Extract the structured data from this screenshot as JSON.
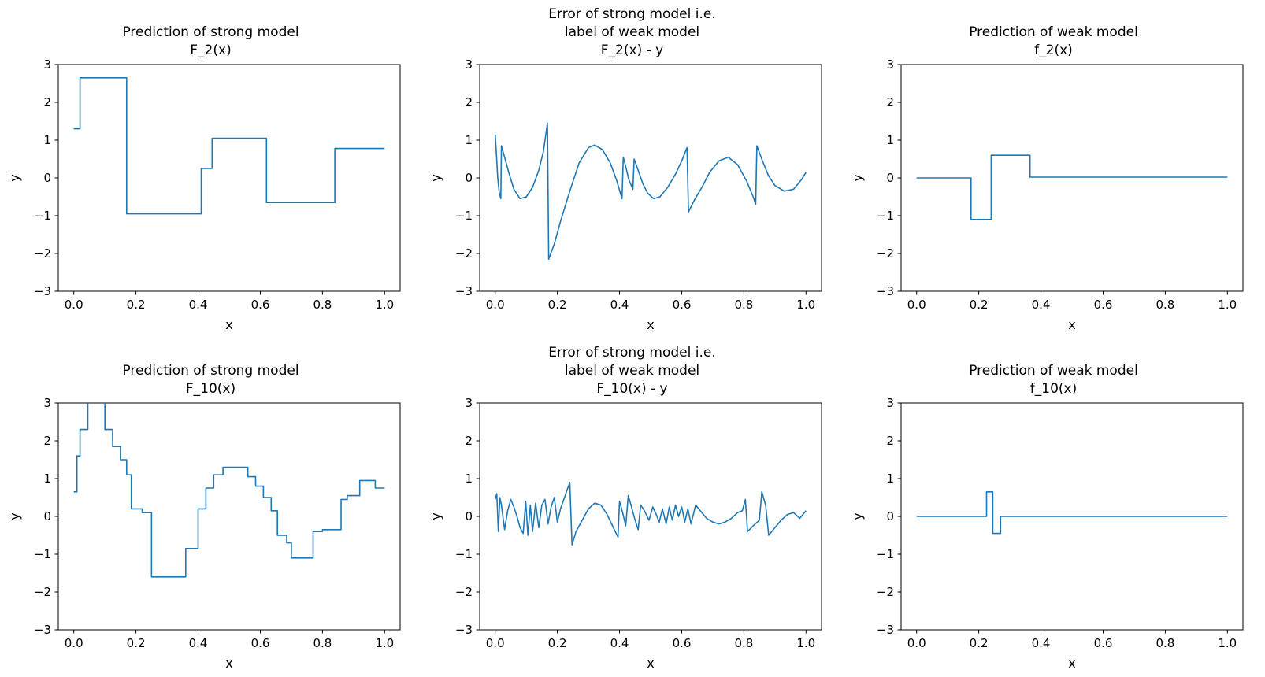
{
  "figure": {
    "background": "#ffffff",
    "line_color": "#1f77b4",
    "text_color": "#000000"
  },
  "chart_data": [
    {
      "id": "prediction-strong-model-F2",
      "type": "line",
      "line_style": "step",
      "title": "Prediction of strong model\nF_2(x)",
      "xlabel": "x",
      "ylabel": "y",
      "xlim": [
        -0.05,
        1.05
      ],
      "ylim": [
        -3,
        3
      ],
      "grid": false,
      "legend": "none",
      "xticks": {
        "values": [
          0.0,
          0.2,
          0.4,
          0.6,
          0.8,
          1.0
        ],
        "labels": [
          "0.0",
          "0.2",
          "0.4",
          "0.6",
          "0.8",
          "1.0"
        ]
      },
      "yticks": {
        "values": [
          -3,
          -2,
          -1,
          0,
          1,
          2,
          3
        ],
        "labels": [
          "−3",
          "−2",
          "−1",
          "0",
          "1",
          "2",
          "3"
        ]
      },
      "segments": [
        [
          0.0,
          0.02,
          1.3
        ],
        [
          0.02,
          0.17,
          2.65
        ],
        [
          0.17,
          0.41,
          -0.95
        ],
        [
          0.41,
          0.445,
          0.25
        ],
        [
          0.445,
          0.62,
          1.05
        ],
        [
          0.62,
          0.84,
          -0.65
        ],
        [
          0.84,
          1.0,
          0.78
        ]
      ]
    },
    {
      "id": "error-strong-model-F2",
      "type": "line",
      "line_style": "curve",
      "title": "Error of strong model i.e.\nlabel of weak model\nF_2(x) - y",
      "xlabel": "x",
      "ylabel": "y",
      "xlim": [
        -0.05,
        1.05
      ],
      "ylim": [
        -3,
        3
      ],
      "grid": false,
      "legend": "none",
      "xticks": {
        "values": [
          0.0,
          0.2,
          0.4,
          0.6,
          0.8,
          1.0
        ],
        "labels": [
          "0.0",
          "0.2",
          "0.4",
          "0.6",
          "0.8",
          "1.0"
        ]
      },
      "yticks": {
        "values": [
          -3,
          -2,
          -1,
          0,
          1,
          2,
          3
        ],
        "labels": [
          "−3",
          "−2",
          "−1",
          "0",
          "1",
          "2",
          "3"
        ]
      },
      "points": [
        [
          0.0,
          1.15
        ],
        [
          0.004,
          0.6
        ],
        [
          0.008,
          0.0
        ],
        [
          0.013,
          -0.4
        ],
        [
          0.018,
          -0.55
        ],
        [
          0.02,
          0.85
        ],
        [
          0.03,
          0.55
        ],
        [
          0.045,
          0.1
        ],
        [
          0.06,
          -0.3
        ],
        [
          0.08,
          -0.55
        ],
        [
          0.1,
          -0.5
        ],
        [
          0.12,
          -0.25
        ],
        [
          0.14,
          0.2
        ],
        [
          0.155,
          0.7
        ],
        [
          0.168,
          1.45
        ],
        [
          0.172,
          -2.15
        ],
        [
          0.19,
          -1.75
        ],
        [
          0.21,
          -1.15
        ],
        [
          0.24,
          -0.35
        ],
        [
          0.27,
          0.4
        ],
        [
          0.3,
          0.8
        ],
        [
          0.32,
          0.87
        ],
        [
          0.345,
          0.75
        ],
        [
          0.37,
          0.4
        ],
        [
          0.39,
          -0.05
        ],
        [
          0.408,
          -0.55
        ],
        [
          0.412,
          0.55
        ],
        [
          0.42,
          0.3
        ],
        [
          0.43,
          -0.05
        ],
        [
          0.443,
          -0.3
        ],
        [
          0.447,
          0.5
        ],
        [
          0.46,
          0.2
        ],
        [
          0.475,
          -0.15
        ],
        [
          0.49,
          -0.4
        ],
        [
          0.51,
          -0.55
        ],
        [
          0.53,
          -0.5
        ],
        [
          0.555,
          -0.25
        ],
        [
          0.58,
          0.1
        ],
        [
          0.6,
          0.45
        ],
        [
          0.617,
          0.8
        ],
        [
          0.622,
          -0.9
        ],
        [
          0.64,
          -0.6
        ],
        [
          0.665,
          -0.25
        ],
        [
          0.69,
          0.15
        ],
        [
          0.72,
          0.45
        ],
        [
          0.75,
          0.55
        ],
        [
          0.78,
          0.35
        ],
        [
          0.81,
          -0.1
        ],
        [
          0.83,
          -0.5
        ],
        [
          0.838,
          -0.7
        ],
        [
          0.842,
          0.85
        ],
        [
          0.86,
          0.45
        ],
        [
          0.88,
          0.05
        ],
        [
          0.9,
          -0.2
        ],
        [
          0.93,
          -0.35
        ],
        [
          0.96,
          -0.3
        ],
        [
          0.985,
          -0.05
        ],
        [
          1.0,
          0.15
        ]
      ]
    },
    {
      "id": "prediction-weak-model-f2",
      "type": "line",
      "line_style": "step",
      "title": "Prediction of weak model\nf_2(x)",
      "xlabel": "x",
      "ylabel": "y",
      "xlim": [
        -0.05,
        1.05
      ],
      "ylim": [
        -3,
        3
      ],
      "grid": false,
      "legend": "none",
      "xticks": {
        "values": [
          0.0,
          0.2,
          0.4,
          0.6,
          0.8,
          1.0
        ],
        "labels": [
          "0.0",
          "0.2",
          "0.4",
          "0.6",
          "0.8",
          "1.0"
        ]
      },
      "yticks": {
        "values": [
          -3,
          -2,
          -1,
          0,
          1,
          2,
          3
        ],
        "labels": [
          "−3",
          "−2",
          "−1",
          "0",
          "1",
          "2",
          "3"
        ]
      },
      "segments": [
        [
          0.0,
          0.175,
          0.0
        ],
        [
          0.175,
          0.24,
          -1.1
        ],
        [
          0.24,
          0.365,
          0.6
        ],
        [
          0.365,
          1.0,
          0.02
        ]
      ]
    },
    {
      "id": "prediction-strong-model-F10",
      "type": "line",
      "line_style": "step",
      "title": "Prediction of strong model\nF_10(x)",
      "xlabel": "x",
      "ylabel": "y",
      "xlim": [
        -0.05,
        1.05
      ],
      "ylim": [
        -3,
        3
      ],
      "grid": false,
      "legend": "none",
      "xticks": {
        "values": [
          0.0,
          0.2,
          0.4,
          0.6,
          0.8,
          1.0
        ],
        "labels": [
          "0.0",
          "0.2",
          "0.4",
          "0.6",
          "0.8",
          "1.0"
        ]
      },
      "yticks": {
        "values": [
          -3,
          -2,
          -1,
          0,
          1,
          2,
          3
        ],
        "labels": [
          "−3",
          "−2",
          "−1",
          "0",
          "1",
          "2",
          "3"
        ]
      },
      "segments": [
        [
          0.0,
          0.01,
          0.65
        ],
        [
          0.01,
          0.02,
          1.6
        ],
        [
          0.02,
          0.045,
          2.3
        ],
        [
          0.045,
          0.1,
          3.2
        ],
        [
          0.1,
          0.125,
          2.3
        ],
        [
          0.125,
          0.15,
          1.85
        ],
        [
          0.15,
          0.17,
          1.5
        ],
        [
          0.17,
          0.185,
          1.1
        ],
        [
          0.185,
          0.22,
          0.2
        ],
        [
          0.22,
          0.25,
          0.1
        ],
        [
          0.25,
          0.36,
          -1.6
        ],
        [
          0.36,
          0.4,
          -0.85
        ],
        [
          0.4,
          0.425,
          0.2
        ],
        [
          0.425,
          0.45,
          0.75
        ],
        [
          0.45,
          0.48,
          1.1
        ],
        [
          0.48,
          0.56,
          1.3
        ],
        [
          0.56,
          0.585,
          1.05
        ],
        [
          0.585,
          0.61,
          0.8
        ],
        [
          0.61,
          0.635,
          0.5
        ],
        [
          0.635,
          0.655,
          0.15
        ],
        [
          0.655,
          0.685,
          -0.5
        ],
        [
          0.685,
          0.7,
          -0.7
        ],
        [
          0.7,
          0.77,
          -1.1
        ],
        [
          0.77,
          0.8,
          -0.4
        ],
        [
          0.8,
          0.86,
          -0.35
        ],
        [
          0.86,
          0.88,
          0.45
        ],
        [
          0.88,
          0.92,
          0.55
        ],
        [
          0.92,
          0.97,
          0.95
        ],
        [
          0.97,
          1.0,
          0.75
        ]
      ]
    },
    {
      "id": "error-strong-model-F10",
      "type": "line",
      "line_style": "curve",
      "title": "Error of strong model i.e.\nlabel of weak model\nF_10(x) - y",
      "xlabel": "x",
      "ylabel": "y",
      "xlim": [
        -0.05,
        1.05
      ],
      "ylim": [
        -3,
        3
      ],
      "grid": false,
      "legend": "none",
      "xticks": {
        "values": [
          0.0,
          0.2,
          0.4,
          0.6,
          0.8,
          1.0
        ],
        "labels": [
          "0.0",
          "0.2",
          "0.4",
          "0.6",
          "0.8",
          "1.0"
        ]
      },
      "yticks": {
        "values": [
          -3,
          -2,
          -1,
          0,
          1,
          2,
          3
        ],
        "labels": [
          "−3",
          "−2",
          "−1",
          "0",
          "1",
          "2",
          "3"
        ]
      },
      "points": [
        [
          0.0,
          0.45
        ],
        [
          0.005,
          0.6
        ],
        [
          0.01,
          -0.4
        ],
        [
          0.015,
          0.5
        ],
        [
          0.02,
          0.3
        ],
        [
          0.03,
          -0.35
        ],
        [
          0.04,
          0.15
        ],
        [
          0.05,
          0.45
        ],
        [
          0.06,
          0.25
        ],
        [
          0.07,
          0.0
        ],
        [
          0.08,
          -0.3
        ],
        [
          0.09,
          -0.45
        ],
        [
          0.098,
          0.4
        ],
        [
          0.105,
          -0.5
        ],
        [
          0.113,
          0.3
        ],
        [
          0.12,
          -0.4
        ],
        [
          0.13,
          0.35
        ],
        [
          0.14,
          -0.3
        ],
        [
          0.15,
          0.3
        ],
        [
          0.16,
          0.45
        ],
        [
          0.17,
          -0.2
        ],
        [
          0.18,
          0.25
        ],
        [
          0.19,
          0.5
        ],
        [
          0.2,
          -0.15
        ],
        [
          0.21,
          0.2
        ],
        [
          0.225,
          0.55
        ],
        [
          0.24,
          0.9
        ],
        [
          0.247,
          -0.75
        ],
        [
          0.26,
          -0.4
        ],
        [
          0.28,
          -0.1
        ],
        [
          0.3,
          0.2
        ],
        [
          0.32,
          0.35
        ],
        [
          0.34,
          0.3
        ],
        [
          0.36,
          0.05
        ],
        [
          0.38,
          -0.3
        ],
        [
          0.395,
          -0.55
        ],
        [
          0.4,
          0.4
        ],
        [
          0.41,
          0.1
        ],
        [
          0.42,
          -0.25
        ],
        [
          0.428,
          0.55
        ],
        [
          0.437,
          0.3
        ],
        [
          0.45,
          -0.1
        ],
        [
          0.46,
          -0.35
        ],
        [
          0.468,
          0.3
        ],
        [
          0.48,
          0.15
        ],
        [
          0.495,
          -0.1
        ],
        [
          0.507,
          0.25
        ],
        [
          0.518,
          0.05
        ],
        [
          0.528,
          -0.15
        ],
        [
          0.538,
          0.2
        ],
        [
          0.55,
          -0.2
        ],
        [
          0.56,
          0.25
        ],
        [
          0.57,
          -0.1
        ],
        [
          0.58,
          0.3
        ],
        [
          0.59,
          0.0
        ],
        [
          0.6,
          0.25
        ],
        [
          0.61,
          -0.15
        ],
        [
          0.62,
          0.2
        ],
        [
          0.63,
          -0.2
        ],
        [
          0.645,
          0.3
        ],
        [
          0.66,
          0.15
        ],
        [
          0.68,
          -0.05
        ],
        [
          0.7,
          -0.15
        ],
        [
          0.72,
          -0.2
        ],
        [
          0.74,
          -0.15
        ],
        [
          0.76,
          -0.05
        ],
        [
          0.78,
          0.1
        ],
        [
          0.795,
          0.15
        ],
        [
          0.805,
          0.45
        ],
        [
          0.812,
          -0.4
        ],
        [
          0.83,
          -0.25
        ],
        [
          0.85,
          -0.1
        ],
        [
          0.858,
          0.65
        ],
        [
          0.87,
          0.3
        ],
        [
          0.88,
          -0.5
        ],
        [
          0.9,
          -0.3
        ],
        [
          0.92,
          -0.1
        ],
        [
          0.94,
          0.05
        ],
        [
          0.96,
          0.1
        ],
        [
          0.98,
          -0.05
        ],
        [
          1.0,
          0.15
        ]
      ]
    },
    {
      "id": "prediction-weak-model-f10",
      "type": "line",
      "line_style": "step",
      "title": "Prediction of weak model\nf_10(x)",
      "xlabel": "x",
      "ylabel": "y",
      "xlim": [
        -0.05,
        1.05
      ],
      "ylim": [
        -3,
        3
      ],
      "grid": false,
      "legend": "none",
      "xticks": {
        "values": [
          0.0,
          0.2,
          0.4,
          0.6,
          0.8,
          1.0
        ],
        "labels": [
          "0.0",
          "0.2",
          "0.4",
          "0.6",
          "0.8",
          "1.0"
        ]
      },
      "yticks": {
        "values": [
          -3,
          -2,
          -1,
          0,
          1,
          2,
          3
        ],
        "labels": [
          "−3",
          "−2",
          "−1",
          "0",
          "1",
          "2",
          "3"
        ]
      },
      "segments": [
        [
          0.0,
          0.225,
          0.0
        ],
        [
          0.225,
          0.245,
          0.65
        ],
        [
          0.245,
          0.27,
          -0.45
        ],
        [
          0.27,
          1.0,
          0.0
        ]
      ]
    }
  ]
}
